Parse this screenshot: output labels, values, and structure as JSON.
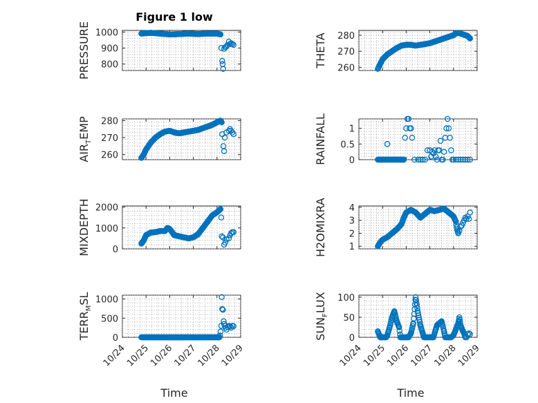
{
  "figure": {
    "title": "Figure 1 low",
    "xlabel": "Time",
    "x_ticks": [
      "10/24",
      "10/25",
      "10/26",
      "10/27",
      "10/28",
      "10/29"
    ],
    "marker_color": "#0072BD"
  },
  "chart_data": [
    {
      "type": "scatter",
      "title": "Figure 1 low",
      "ylabel": "PRESSURE",
      "ylabel_parts": [
        "PRESSURE"
      ],
      "xlim": [
        0,
        5
      ],
      "ylim": [
        760,
        1010
      ],
      "yticks": [
        800,
        900,
        1000
      ],
      "grid": true,
      "series": [
        {
          "keys": [
            [
              0.8,
              990
            ],
            [
              1.2,
              995
            ],
            [
              1.6,
              990
            ],
            [
              2.0,
              985
            ],
            [
              2.4,
              987
            ],
            [
              2.8,
              990
            ],
            [
              3.2,
              987
            ],
            [
              3.6,
              990
            ],
            [
              4.0,
              990
            ],
            [
              4.15,
              985
            ]
          ],
          "step": 0.018,
          "extra": [
            [
              4.18,
              900
            ],
            [
              4.22,
              820
            ],
            [
              4.24,
              800
            ],
            [
              4.26,
              770
            ],
            [
              4.3,
              895
            ],
            [
              4.35,
              905
            ],
            [
              4.4,
              910
            ],
            [
              4.45,
              920
            ],
            [
              4.5,
              940
            ],
            [
              4.55,
              925
            ],
            [
              4.6,
              930
            ],
            [
              4.65,
              925
            ],
            [
              4.7,
              920
            ]
          ]
        }
      ]
    },
    {
      "type": "scatter",
      "ylabel": "THETA",
      "ylabel_parts": [
        "THETA"
      ],
      "xlim": [
        0,
        5
      ],
      "ylim": [
        258,
        283
      ],
      "yticks": [
        260,
        270,
        280
      ],
      "grid": true,
      "series": [
        {
          "keys": [
            [
              0.8,
              259
            ],
            [
              0.9,
              262
            ],
            [
              1.0,
              265
            ],
            [
              1.2,
              268
            ],
            [
              1.4,
              270
            ],
            [
              1.6,
              272
            ],
            [
              1.8,
              273.5
            ],
            [
              2.0,
              274
            ],
            [
              2.2,
              274
            ],
            [
              2.4,
              273.5
            ],
            [
              2.6,
              274
            ],
            [
              2.8,
              274.5
            ],
            [
              3.0,
              275
            ],
            [
              3.2,
              276
            ],
            [
              3.4,
              277
            ],
            [
              3.6,
              278
            ],
            [
              3.8,
              279
            ],
            [
              4.0,
              280
            ],
            [
              4.1,
              281
            ],
            [
              4.2,
              281.5
            ],
            [
              4.4,
              280.5
            ],
            [
              4.6,
              279.5
            ],
            [
              4.7,
              278
            ]
          ],
          "step": 0.018,
          "extra": []
        }
      ]
    },
    {
      "type": "scatter",
      "ylabel": "AIR_TEMP",
      "ylabel_parts": [
        "AIR",
        "T",
        "EMP"
      ],
      "xlim": [
        0,
        5
      ],
      "ylim": [
        257,
        281
      ],
      "yticks": [
        260,
        270,
        280
      ],
      "grid": true,
      "series": [
        {
          "keys": [
            [
              0.8,
              258
            ],
            [
              0.9,
              260
            ],
            [
              1.0,
              263
            ],
            [
              1.2,
              267
            ],
            [
              1.4,
              270
            ],
            [
              1.6,
              272
            ],
            [
              1.8,
              273.5
            ],
            [
              2.0,
              274
            ],
            [
              2.2,
              273
            ],
            [
              2.4,
              272.5
            ],
            [
              2.6,
              273
            ],
            [
              2.8,
              273.5
            ],
            [
              3.0,
              274
            ],
            [
              3.2,
              274.5
            ],
            [
              3.4,
              275.5
            ],
            [
              3.6,
              276.5
            ],
            [
              3.8,
              277.5
            ],
            [
              4.0,
              279
            ],
            [
              4.15,
              280
            ],
            [
              4.2,
              279
            ]
          ],
          "step": 0.018,
          "extra": [
            [
              4.22,
              272
            ],
            [
              4.27,
              265
            ],
            [
              4.3,
              262
            ],
            [
              4.33,
              270
            ],
            [
              4.4,
              273
            ],
            [
              4.5,
              274
            ],
            [
              4.55,
              275
            ],
            [
              4.6,
              274
            ],
            [
              4.65,
              273
            ],
            [
              4.7,
              272
            ]
          ]
        }
      ]
    },
    {
      "type": "scatter",
      "ylabel": "RAINFALL",
      "ylabel_parts": [
        "RAINFALL"
      ],
      "xlim": [
        0,
        5
      ],
      "ylim": [
        0,
        1.3
      ],
      "yticks": [
        0,
        0.5,
        1
      ],
      "grid": true,
      "series": [
        {
          "keys": [
            [
              0.8,
              0
            ],
            [
              1.9,
              0
            ]
          ],
          "step": 0.02,
          "extra": [
            [
              1.2,
              0.5
            ],
            [
              1.95,
              0.7
            ],
            [
              2.0,
              1.0
            ],
            [
              2.05,
              1.3
            ],
            [
              2.1,
              1.3
            ],
            [
              2.15,
              1.0
            ],
            [
              2.2,
              1.0
            ],
            [
              2.25,
              0.7
            ],
            [
              2.35,
              0
            ],
            [
              2.5,
              0
            ],
            [
              2.6,
              0
            ],
            [
              2.7,
              0
            ],
            [
              2.8,
              0
            ],
            [
              2.9,
              0.3
            ],
            [
              3.0,
              0.3
            ],
            [
              3.05,
              0.1
            ],
            [
              3.1,
              0.25
            ],
            [
              3.15,
              0.2
            ],
            [
              3.2,
              0.3
            ],
            [
              3.25,
              0.1
            ],
            [
              3.3,
              0
            ],
            [
              3.35,
              0.3
            ],
            [
              3.4,
              0.3
            ],
            [
              3.45,
              0.6
            ],
            [
              3.5,
              0
            ],
            [
              3.55,
              0
            ],
            [
              3.6,
              0.25
            ],
            [
              3.65,
              0.7
            ],
            [
              3.7,
              1.0
            ],
            [
              3.75,
              1.3
            ],
            [
              3.8,
              1.0
            ],
            [
              3.85,
              0.7
            ],
            [
              3.9,
              0.3
            ],
            [
              3.95,
              0
            ],
            [
              4.0,
              0
            ],
            [
              4.1,
              0
            ],
            [
              4.2,
              0
            ],
            [
              4.3,
              0
            ],
            [
              4.4,
              0
            ],
            [
              4.5,
              0
            ],
            [
              4.6,
              0
            ],
            [
              4.7,
              0
            ]
          ]
        }
      ]
    },
    {
      "type": "scatter",
      "ylabel": "MIXDEPTH",
      "ylabel_parts": [
        "MIXDEPTH"
      ],
      "xlim": [
        0,
        5
      ],
      "ylim": [
        0,
        2050
      ],
      "yticks": [
        0,
        1000,
        2000
      ],
      "grid": true,
      "series": [
        {
          "keys": [
            [
              0.8,
              250
            ],
            [
              0.9,
              400
            ],
            [
              1.0,
              650
            ],
            [
              1.2,
              780
            ],
            [
              1.4,
              800
            ],
            [
              1.6,
              850
            ],
            [
              1.8,
              850
            ],
            [
              1.9,
              1000
            ],
            [
              2.0,
              950
            ],
            [
              2.2,
              650
            ],
            [
              2.4,
              600
            ],
            [
              2.6,
              550
            ],
            [
              2.8,
              500
            ],
            [
              3.0,
              550
            ],
            [
              3.2,
              700
            ],
            [
              3.4,
              1000
            ],
            [
              3.6,
              1300
            ],
            [
              3.8,
              1600
            ],
            [
              4.0,
              1750
            ],
            [
              4.1,
              1850
            ],
            [
              4.15,
              1900
            ]
          ],
          "step": 0.018,
          "extra": [
            [
              4.18,
              1500
            ],
            [
              4.2,
              600
            ],
            [
              4.25,
              550
            ],
            [
              4.3,
              200
            ],
            [
              4.35,
              300
            ],
            [
              4.4,
              450
            ],
            [
              4.5,
              500
            ],
            [
              4.55,
              650
            ],
            [
              4.6,
              750
            ],
            [
              4.65,
              800
            ],
            [
              4.7,
              800
            ]
          ]
        }
      ]
    },
    {
      "type": "scatter",
      "ylabel": "H2OMIXRA",
      "ylabel_parts": [
        "H2OMIXRA"
      ],
      "xlim": [
        0,
        5
      ],
      "ylim": [
        0.8,
        4.1
      ],
      "yticks": [
        1,
        2,
        3,
        4
      ],
      "grid": true,
      "series": [
        {
          "keys": [
            [
              0.8,
              1.0
            ],
            [
              0.9,
              1.3
            ],
            [
              1.0,
              1.5
            ],
            [
              1.2,
              1.7
            ],
            [
              1.4,
              2.0
            ],
            [
              1.6,
              2.3
            ],
            [
              1.8,
              2.7
            ],
            [
              1.9,
              3.2
            ],
            [
              2.0,
              3.6
            ],
            [
              2.2,
              3.8
            ],
            [
              2.4,
              3.6
            ],
            [
              2.6,
              3.2
            ],
            [
              2.8,
              3.5
            ],
            [
              3.0,
              3.8
            ],
            [
              3.2,
              3.7
            ],
            [
              3.4,
              3.8
            ],
            [
              3.6,
              3.9
            ],
            [
              3.8,
              3.6
            ],
            [
              4.0,
              3.3
            ],
            [
              4.1,
              2.9
            ],
            [
              4.15,
              2.3
            ],
            [
              4.2,
              2.0
            ]
          ],
          "step": 0.018,
          "extra": [
            [
              4.25,
              2.2
            ],
            [
              4.3,
              2.5
            ],
            [
              4.35,
              2.6
            ],
            [
              4.4,
              2.8
            ],
            [
              4.45,
              3.0
            ],
            [
              4.5,
              3.2
            ],
            [
              4.55,
              3.1
            ],
            [
              4.6,
              3.3
            ],
            [
              4.65,
              3.1
            ],
            [
              4.7,
              3.6
            ]
          ]
        }
      ]
    },
    {
      "type": "scatter",
      "ylabel": "TERR_MSL",
      "ylabel_parts": [
        "TERR",
        "M",
        "SL"
      ],
      "xlim": [
        0,
        5
      ],
      "ylim": [
        0,
        1100
      ],
      "yticks": [
        0,
        500,
        1000
      ],
      "grid": true,
      "series": [
        {
          "keys": [
            [
              0.8,
              0
            ],
            [
              4.1,
              0
            ]
          ],
          "step": 0.018,
          "extra": [
            [
              4.12,
              50
            ],
            [
              4.15,
              150
            ],
            [
              4.18,
              300
            ],
            [
              4.2,
              1050
            ],
            [
              4.22,
              740
            ],
            [
              4.25,
              720
            ],
            [
              4.28,
              420
            ],
            [
              4.3,
              350
            ],
            [
              4.33,
              300
            ],
            [
              4.37,
              250
            ],
            [
              4.4,
              200
            ],
            [
              4.45,
              270
            ],
            [
              4.5,
              300
            ],
            [
              4.55,
              280
            ],
            [
              4.6,
              250
            ],
            [
              4.65,
              300
            ],
            [
              4.7,
              290
            ]
          ]
        }
      ]
    },
    {
      "type": "scatter",
      "ylabel": "SUN_FLUX",
      "ylabel_parts": [
        "SUN",
        "F",
        "LUX"
      ],
      "xlim": [
        0,
        5
      ],
      "ylim": [
        0,
        105
      ],
      "yticks": [
        0,
        50,
        100
      ],
      "grid": true,
      "series": [
        {
          "keys": [
            [
              0.8,
              15
            ],
            [
              0.85,
              8
            ],
            [
              0.9,
              0
            ],
            [
              1.15,
              0
            ],
            [
              1.2,
              5
            ],
            [
              1.3,
              25
            ],
            [
              1.4,
              50
            ],
            [
              1.5,
              65
            ],
            [
              1.6,
              40
            ],
            [
              1.7,
              25
            ],
            [
              1.75,
              0
            ],
            [
              2.1,
              0
            ],
            [
              2.2,
              10
            ],
            [
              2.3,
              35
            ],
            [
              2.4,
              100
            ],
            [
              2.45,
              80
            ],
            [
              2.5,
              60
            ],
            [
              2.6,
              30
            ],
            [
              2.7,
              10
            ],
            [
              2.75,
              0
            ],
            [
              3.15,
              0
            ],
            [
              3.2,
              10
            ],
            [
              3.3,
              30
            ],
            [
              3.4,
              35
            ],
            [
              3.5,
              40
            ],
            [
              3.6,
              15
            ],
            [
              3.65,
              0
            ],
            [
              3.9,
              0
            ],
            [
              4.0,
              5
            ],
            [
              4.1,
              20
            ],
            [
              4.2,
              35
            ],
            [
              4.25,
              50
            ],
            [
              4.3,
              30
            ],
            [
              4.4,
              15
            ],
            [
              4.45,
              10
            ],
            [
              4.5,
              0
            ],
            [
              4.55,
              0
            ]
          ],
          "step": 0.018,
          "extra": [
            [
              4.6,
              8
            ],
            [
              4.65,
              10
            ],
            [
              4.7,
              8
            ]
          ]
        }
      ]
    }
  ]
}
